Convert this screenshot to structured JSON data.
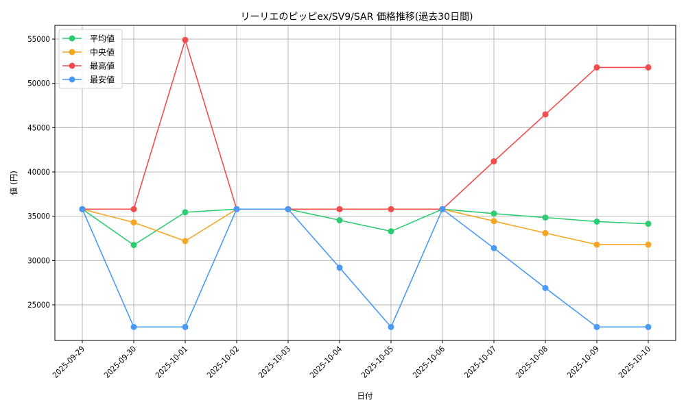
{
  "chart_data": {
    "type": "line",
    "title": "リーリエのピッピex/SV9/SAR 価格推移(過去30日間)",
    "xlabel": "日付",
    "ylabel": "値 (円)",
    "x": [
      "2025-09-29",
      "2025-09-30",
      "2025-10-01",
      "2025-10-02",
      "2025-10-03",
      "2025-10-04",
      "2025-10-05",
      "2025-10-06",
      "2025-10-07",
      "2025-10-08",
      "2025-10-09",
      "2025-10-10"
    ],
    "yticks": [
      25000,
      30000,
      35000,
      40000,
      45000,
      50000,
      55000
    ],
    "ylim": [
      20980,
      56550
    ],
    "grid": true,
    "legend_position": "upper left",
    "series": [
      {
        "name": "平均値",
        "color": "#2ecc71",
        "values": [
          35800,
          31750,
          35450,
          35800,
          35800,
          34550,
          33300,
          35800,
          35300,
          34850,
          34400,
          34150
        ]
      },
      {
        "name": "中央値",
        "color": "#f5a623",
        "values": [
          35800,
          34300,
          32200,
          35800,
          35800,
          35800,
          35800,
          35800,
          34450,
          33100,
          31800,
          31800
        ]
      },
      {
        "name": "最高値",
        "color": "#f24c4c",
        "values": [
          35800,
          35800,
          54900,
          35800,
          35800,
          35800,
          35800,
          35800,
          41200,
          46500,
          51800,
          51800
        ]
      },
      {
        "name": "最安値",
        "color": "#4a9af5",
        "values": [
          35800,
          22500,
          22500,
          35800,
          35800,
          29200,
          22500,
          35800,
          31400,
          26900,
          22500,
          22500
        ]
      }
    ]
  }
}
